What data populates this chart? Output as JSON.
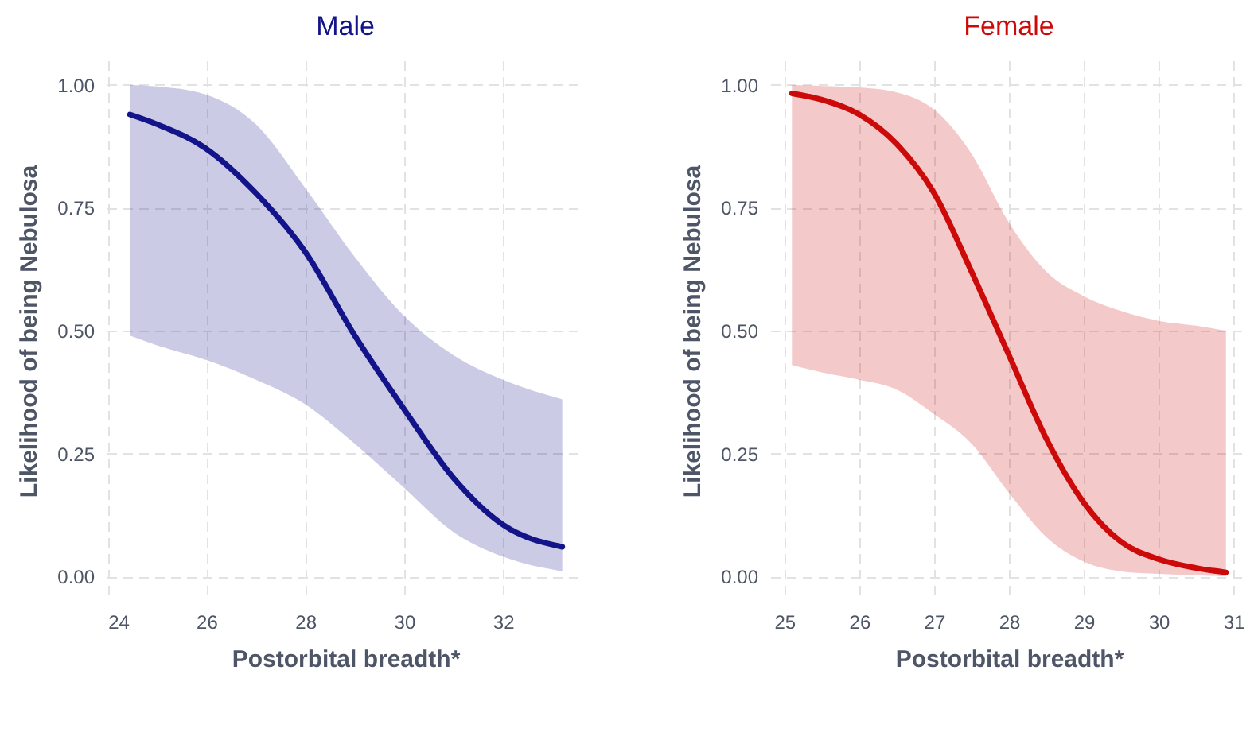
{
  "chart_data": [
    {
      "type": "line",
      "title": "Male",
      "xlabel": "Postorbital breadth*",
      "ylabel": "Likelihood of being Nebulosa",
      "x": [
        24.45,
        25,
        26,
        27,
        28,
        29,
        30,
        31,
        32,
        33.2
      ],
      "series": [
        {
          "color": "#14148a",
          "values": [
            0.94,
            0.92,
            0.87,
            0.78,
            0.66,
            0.49,
            0.34,
            0.2,
            0.105,
            0.06
          ],
          "lower": [
            0.49,
            0.47,
            0.44,
            0.4,
            0.35,
            0.27,
            0.18,
            0.09,
            0.04,
            0.01
          ],
          "upper": [
            1.0,
            0.997,
            0.98,
            0.92,
            0.79,
            0.65,
            0.53,
            0.45,
            0.4,
            0.36
          ]
        }
      ],
      "xlim": [
        23.98,
        33.64
      ],
      "ylim": [
        -0.05,
        1.05
      ],
      "xticks": [
        24,
        26,
        28,
        30,
        32
      ],
      "yticks": [
        {
          "value": 0,
          "label": "0.00"
        },
        {
          "value": 0.25,
          "label": "0.25"
        },
        {
          "value": 0.5,
          "label": "0.50"
        },
        {
          "value": 0.75,
          "label": "0.75"
        },
        {
          "value": 1,
          "label": "1.00"
        }
      ],
      "grid": true
    },
    {
      "type": "line",
      "title": "Female",
      "xlabel": "Postorbital breadth*",
      "ylabel": "Likelihood of being Nebulosa",
      "x": [
        25.1,
        25.5,
        26,
        26.5,
        27,
        27.5,
        28,
        28.5,
        29,
        29.5,
        30,
        30.5,
        30.9
      ],
      "series": [
        {
          "color": "#cc0a0a",
          "values": [
            0.983,
            0.97,
            0.94,
            0.88,
            0.78,
            0.62,
            0.45,
            0.28,
            0.15,
            0.07,
            0.035,
            0.017,
            0.008
          ],
          "lower": [
            0.43,
            0.415,
            0.4,
            0.38,
            0.33,
            0.27,
            0.17,
            0.08,
            0.03,
            0.01,
            0.005,
            0.002,
            0.0
          ],
          "upper": [
            1.0,
            0.998,
            0.995,
            0.985,
            0.95,
            0.86,
            0.72,
            0.62,
            0.57,
            0.54,
            0.52,
            0.51,
            0.5
          ]
        }
      ],
      "xlim": [
        24.81,
        31.19
      ],
      "ylim": [
        -0.05,
        1.05
      ],
      "xticks": [
        25,
        26,
        27,
        28,
        29,
        30,
        31
      ],
      "yticks": [
        {
          "value": 0,
          "label": "0.00"
        },
        {
          "value": 0.25,
          "label": "0.25"
        },
        {
          "value": 0.5,
          "label": "0.50"
        },
        {
          "value": 0.75,
          "label": "0.75"
        },
        {
          "value": 1,
          "label": "1.00"
        }
      ],
      "grid": true
    }
  ]
}
